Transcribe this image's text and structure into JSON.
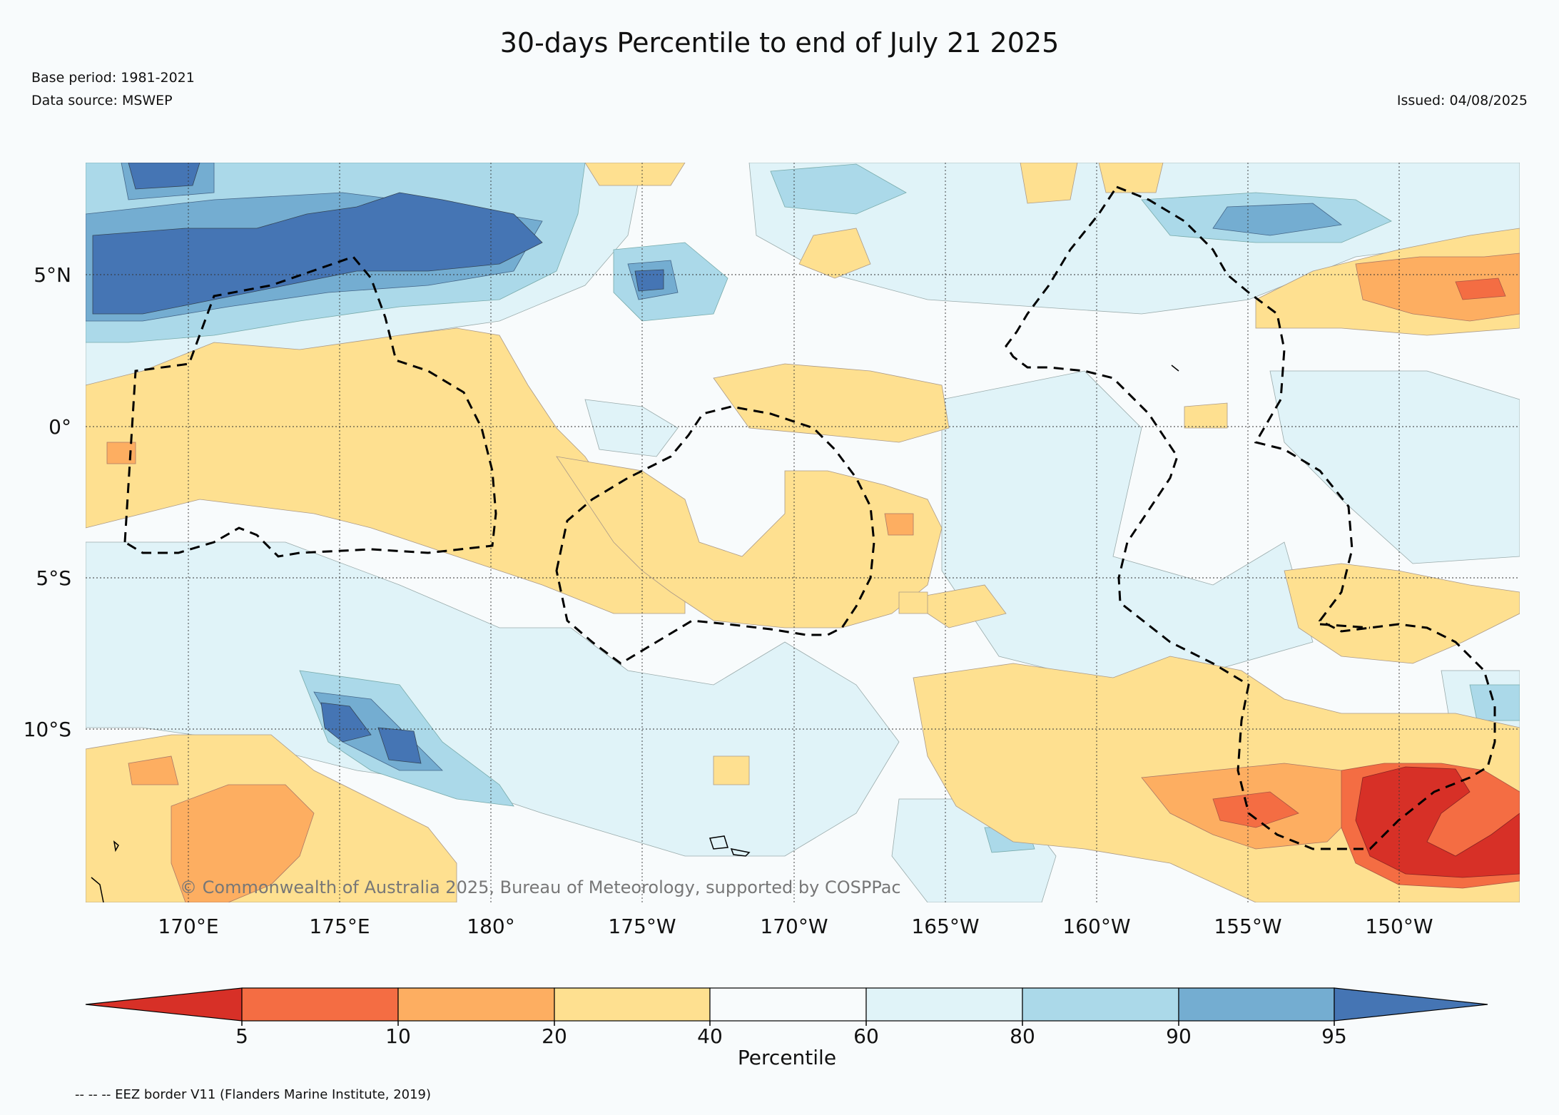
{
  "title": "30-days Percentile to end of July 21 2025",
  "base_period": "Base period: 1981-2021",
  "data_source": "Data source: MSWEP",
  "issued": "Issued: 04/08/2025",
  "copyright": "© Commonwealth of Australia 2025, Bureau of Meteorology, supported by COSPPac",
  "footnote": "-- -- -- EEZ border V11 (Flanders Marine Institute, 2019)",
  "map": {
    "lat_labels": [
      "5°N",
      "0°",
      "5°S",
      "10°S"
    ],
    "lon_labels": [
      "170°E",
      "175°E",
      "180°",
      "175°W",
      "170°W",
      "165°W",
      "160°W",
      "155°W",
      "150°W"
    ]
  },
  "colorbar": {
    "label": "Percentile",
    "ticks": [
      "5",
      "10",
      "20",
      "40",
      "60",
      "80",
      "90",
      "95"
    ],
    "colors": [
      "#d73027",
      "#f46d43",
      "#fdae61",
      "#fee090",
      "#f8fbfc",
      "#e0f3f8",
      "#abd9e9",
      "#74add1",
      "#4575b4"
    ]
  }
}
